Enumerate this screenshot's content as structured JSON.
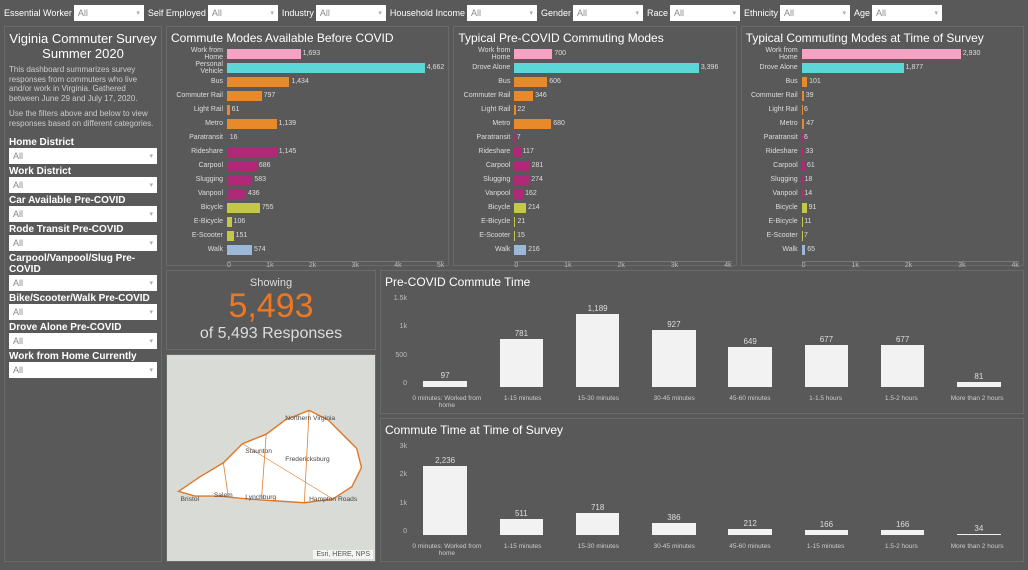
{
  "top_filters": [
    {
      "label": "Essential Worker",
      "value": "All",
      "width": 70
    },
    {
      "label": "Self Employed",
      "value": "All",
      "width": 70
    },
    {
      "label": "Industry",
      "value": "All",
      "width": 70
    },
    {
      "label": "Household Income",
      "value": "All",
      "width": 70
    },
    {
      "label": "Gender",
      "value": "All",
      "width": 70
    },
    {
      "label": "Race",
      "value": "All",
      "width": 70
    },
    {
      "label": "Ethnicity",
      "value": "All",
      "width": 70
    },
    {
      "label": "Age",
      "value": "All",
      "width": 70
    }
  ],
  "sidebar": {
    "title1": "Viginia Commuter Survey",
    "title2": "Summer 2020",
    "desc1": "This dashboard summarizes survey responses from commuters who live and/or work in Virginia. Gathered between June 29 and July 17, 2020.",
    "desc2": "Use the filters above and below to view responses based on different categories.",
    "filters": [
      {
        "label": "Home District",
        "value": "All"
      },
      {
        "label": "Work District",
        "value": "All"
      },
      {
        "label": "Car Available Pre-COVID",
        "value": "All"
      },
      {
        "label": "Rode Transit Pre-COVID",
        "value": "All"
      },
      {
        "label": "Carpool/Vanpool/Slug Pre-COVID",
        "value": "All"
      },
      {
        "label": "Bike/Scooter/Walk Pre-COVID",
        "value": "All"
      },
      {
        "label": "Drove Alone Pre-COVID",
        "value": "All"
      },
      {
        "label": "Work from Home Currently",
        "value": "All"
      }
    ]
  },
  "chart1": {
    "title": "Commute Modes Available Before COVID",
    "xmax": 5000,
    "ticks": [
      "0",
      "1k",
      "2k",
      "3k",
      "4k",
      "5k"
    ],
    "rows": [
      {
        "label": "Work from Home",
        "value": 1693,
        "color": "#f4a3c4"
      },
      {
        "label": "Personal Vehicle",
        "value": 4662,
        "color": "#5cd6d6"
      },
      {
        "label": "Bus",
        "value": 1434,
        "color": "#e88a2a"
      },
      {
        "label": "Commuter Rail",
        "value": 797,
        "color": "#e88a2a"
      },
      {
        "label": "Light Rail",
        "value": 61,
        "color": "#e88a2a"
      },
      {
        "label": "Metro",
        "value": 1139,
        "color": "#e88a2a"
      },
      {
        "label": "Paratransit",
        "value": 16,
        "color": "#b02878"
      },
      {
        "label": "Rideshare",
        "value": 1145,
        "color": "#b02878"
      },
      {
        "label": "Carpool",
        "value": 686,
        "color": "#b02878"
      },
      {
        "label": "Slugging",
        "value": 583,
        "color": "#b02878"
      },
      {
        "label": "Vanpool",
        "value": 436,
        "color": "#b02878"
      },
      {
        "label": "Bicycle",
        "value": 755,
        "color": "#c4c848"
      },
      {
        "label": "E-Bicycle",
        "value": 106,
        "color": "#c4c848"
      },
      {
        "label": "E-Scooter",
        "value": 151,
        "color": "#c4c848"
      },
      {
        "label": "Walk",
        "value": 574,
        "color": "#9cb8d8"
      }
    ]
  },
  "chart2": {
    "title": "Typical Pre-COVID Commuting Modes",
    "xmax": 4000,
    "ticks": [
      "0",
      "1k",
      "2k",
      "3k",
      "4k"
    ],
    "rows": [
      {
        "label": "Work from Home",
        "value": 700,
        "color": "#f4a3c4"
      },
      {
        "label": "Drove Alone",
        "value": 3396,
        "color": "#5cd6d6"
      },
      {
        "label": "Bus",
        "value": 606,
        "color": "#e88a2a"
      },
      {
        "label": "Commuter Rail",
        "value": 346,
        "color": "#e88a2a"
      },
      {
        "label": "Light Rail",
        "value": 22,
        "color": "#e88a2a"
      },
      {
        "label": "Metro",
        "value": 680,
        "color": "#e88a2a"
      },
      {
        "label": "Paratransit",
        "value": 7,
        "color": "#b02878"
      },
      {
        "label": "Rideshare",
        "value": 117,
        "color": "#b02878"
      },
      {
        "label": "Carpool",
        "value": 281,
        "color": "#b02878"
      },
      {
        "label": "Slugging",
        "value": 274,
        "color": "#b02878"
      },
      {
        "label": "Vanpool",
        "value": 162,
        "color": "#b02878"
      },
      {
        "label": "Bicycle",
        "value": 214,
        "color": "#c4c848"
      },
      {
        "label": "E-Bicycle",
        "value": 21,
        "color": "#c4c848"
      },
      {
        "label": "E-Scooter",
        "value": 15,
        "color": "#c4c848"
      },
      {
        "label": "Walk",
        "value": 216,
        "color": "#9cb8d8"
      }
    ]
  },
  "chart3": {
    "title": "Typical Commuting Modes at Time of Survey",
    "xmax": 4000,
    "ticks": [
      "0",
      "1k",
      "2k",
      "3k",
      "4k"
    ],
    "rows": [
      {
        "label": "Work from Home",
        "value": 2930,
        "color": "#f4a3c4"
      },
      {
        "label": "Drove Alone",
        "value": 1877,
        "color": "#5cd6d6"
      },
      {
        "label": "Bus",
        "value": 101,
        "color": "#e88a2a"
      },
      {
        "label": "Commuter Rail",
        "value": 39,
        "color": "#e88a2a"
      },
      {
        "label": "Light Rail",
        "value": 6,
        "color": "#e88a2a"
      },
      {
        "label": "Metro",
        "value": 47,
        "color": "#e88a2a"
      },
      {
        "label": "Paratransit",
        "value": 6,
        "color": "#b02878"
      },
      {
        "label": "Rideshare",
        "value": 33,
        "color": "#b02878"
      },
      {
        "label": "Carpool",
        "value": 61,
        "color": "#b02878"
      },
      {
        "label": "Slugging",
        "value": 18,
        "color": "#b02878"
      },
      {
        "label": "Vanpool",
        "value": 14,
        "color": "#b02878"
      },
      {
        "label": "Bicycle",
        "value": 91,
        "color": "#c4c848"
      },
      {
        "label": "E-Bicycle",
        "value": 11,
        "color": "#c4c848"
      },
      {
        "label": "E-Scooter",
        "value": 7,
        "color": "#c4c848"
      },
      {
        "label": "Walk",
        "value": 65,
        "color": "#9cb8d8"
      }
    ]
  },
  "count": {
    "showing": "Showing",
    "value": "5,493",
    "of": "of 5,493 Responses"
  },
  "map": {
    "attrib": "Esri, HERE, NPS",
    "cities": [
      "Bristol",
      "Salem",
      "Lynchburg",
      "Staunton",
      "Fredericksburg",
      "Northern Virginia",
      "Hampton Roads"
    ]
  },
  "chart4": {
    "title": "Pre-COVID Commute Time",
    "ymax": 1500,
    "yticks": [
      "1.5k",
      "1k",
      "500",
      "0"
    ],
    "bars": [
      {
        "label": "0 minutes: Worked from home",
        "value": 97
      },
      {
        "label": "1-15 minutes",
        "value": 781
      },
      {
        "label": "15-30 minutes",
        "value": 1189
      },
      {
        "label": "30-45 minutes",
        "value": 927
      },
      {
        "label": "45-60 minutes",
        "value": 649
      },
      {
        "label": "1-1.5 hours",
        "value": 677
      },
      {
        "label": "1.5-2 hours",
        "value": 677
      },
      {
        "label": "More than 2 hours",
        "value": 81
      }
    ]
  },
  "chart5": {
    "title": "Commute Time at Time of Survey",
    "ymax": 3000,
    "yticks": [
      "3k",
      "2k",
      "1k",
      "0"
    ],
    "bars": [
      {
        "label": "0 minutes: Worked from home",
        "value": 2236
      },
      {
        "label": "1-15 minutes",
        "value": 511
      },
      {
        "label": "15-30 minutes",
        "value": 718
      },
      {
        "label": "30-45 minutes",
        "value": 386
      },
      {
        "label": "45-60 minutes",
        "value": 212
      },
      {
        "label": "1-15 minutes",
        "value": 166
      },
      {
        "label": "1.5-2 hours",
        "value": 166
      },
      {
        "label": "More than 2 hours",
        "value": 34
      }
    ]
  }
}
